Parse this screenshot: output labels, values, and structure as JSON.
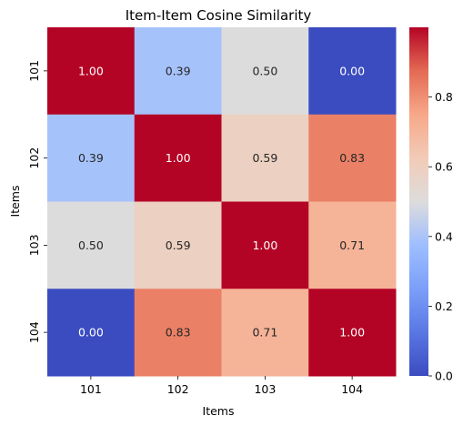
{
  "chart_data": {
    "type": "heatmap",
    "title": "Item-Item Cosine Similarity",
    "xlabel": "Items",
    "ylabel": "Items",
    "x_categories": [
      "101",
      "102",
      "103",
      "104"
    ],
    "y_categories": [
      "101",
      "102",
      "103",
      "104"
    ],
    "values": [
      [
        1.0,
        0.39,
        0.5,
        0.0
      ],
      [
        0.39,
        1.0,
        0.59,
        0.83
      ],
      [
        0.5,
        0.59,
        1.0,
        0.71
      ],
      [
        0.0,
        0.83,
        0.71,
        1.0
      ]
    ],
    "value_format": "0.00",
    "colormap": "coolwarm",
    "vmin": 0.0,
    "vmax": 1.0,
    "colorbar": {
      "ticks": [
        0.0,
        0.2,
        0.4,
        0.6,
        0.8
      ],
      "tick_labels": [
        "0.0",
        "0.2",
        "0.4",
        "0.6",
        "0.8"
      ]
    },
    "colormap_stops": [
      {
        "t": 0.0,
        "color": "#3b4cc0"
      },
      {
        "t": 0.125,
        "color": "#5977e3"
      },
      {
        "t": 0.25,
        "color": "#7b9ff9"
      },
      {
        "t": 0.375,
        "color": "#9ebeff"
      },
      {
        "t": 0.5,
        "color": "#dddcdc"
      },
      {
        "t": 0.625,
        "color": "#f2cbb7"
      },
      {
        "t": 0.75,
        "color": "#f7a889"
      },
      {
        "t": 0.875,
        "color": "#e36a53"
      },
      {
        "t": 1.0,
        "color": "#b40426"
      }
    ]
  }
}
